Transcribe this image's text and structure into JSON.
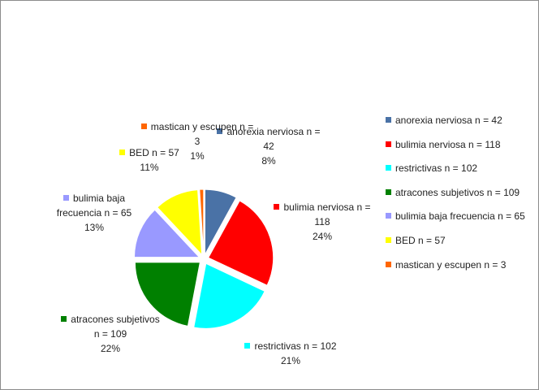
{
  "chart_data": {
    "type": "pie",
    "categories": [
      "anorexia nerviosa n = 42",
      "bulimia nerviosa n = 118",
      "restrictivas n = 102",
      "atracones subjetivos n = 109",
      "bulimia baja frecuencia n = 65",
      "BED n = 57",
      "mastican y escupen n = 3"
    ],
    "values": [
      8,
      24,
      21,
      22,
      13,
      11,
      1
    ],
    "value_labels": [
      "8%",
      "24%",
      "21%",
      "22%",
      "13%",
      "11%",
      "1%"
    ],
    "colors": [
      "#4a72a6",
      "#ff0000",
      "#00ffff",
      "#008000",
      "#9999ff",
      "#ffff00",
      "#ff6600"
    ]
  }
}
